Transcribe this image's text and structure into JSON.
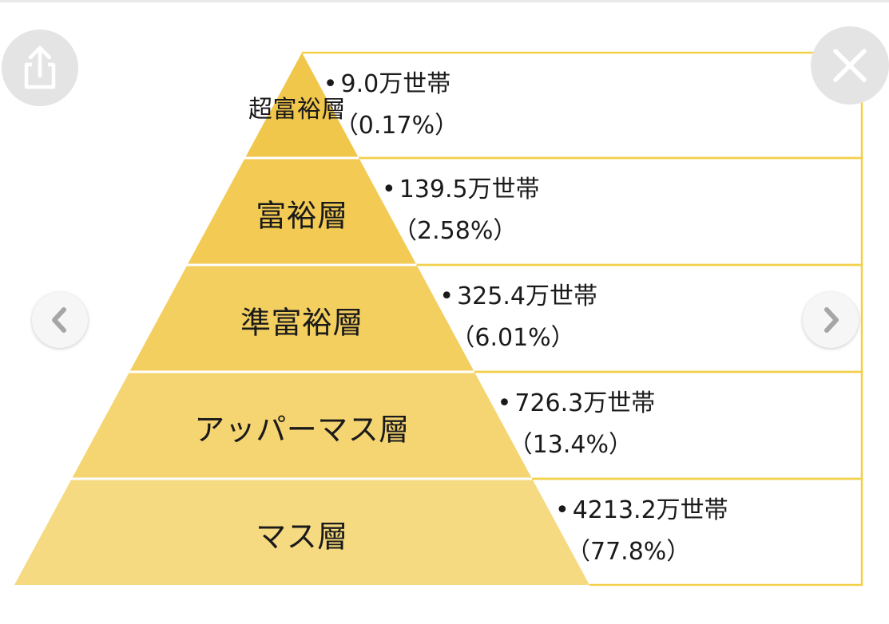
{
  "tiers": [
    {
      "label": "超富裕層",
      "count": "9.0万世帯",
      "percent": "0.17%"
    },
    {
      "label": "富裕層",
      "count": "139.5万世帯",
      "percent": "2.58%"
    },
    {
      "label": "準富裕層",
      "count": "325.4万世帯",
      "percent": "6.01%"
    },
    {
      "label": "アッパーマス層",
      "count": "726.3万世帯",
      "percent": "13.4%"
    },
    {
      "label": "マス層",
      "count": "4213.2万世帯",
      "percent": "77.8%"
    }
  ],
  "colors": {
    "tiers": [
      "#f0c64b",
      "#f2ca54",
      "#f3cf60",
      "#f5d572",
      "#f6da82"
    ],
    "outline": "#f2d04a",
    "button": "#e4e4e4"
  },
  "icons": {
    "share": "share-icon",
    "close": "close-icon",
    "prev": "chevron-left-icon",
    "next": "chevron-right-icon"
  }
}
